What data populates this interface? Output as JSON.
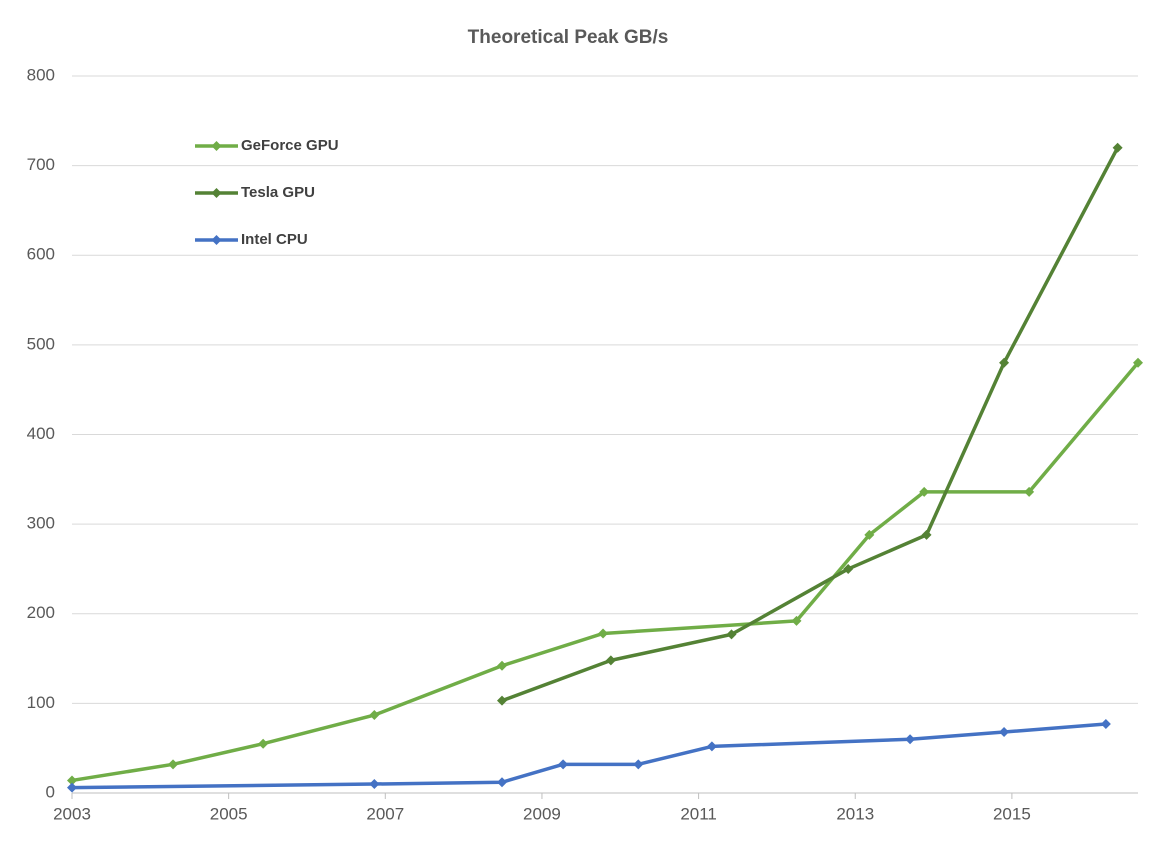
{
  "chart_data": {
    "type": "line",
    "title": "Theoretical  Peak GB/s",
    "xlim": [
      2003,
      2016.61
    ],
    "xticks": [
      2003,
      2005,
      2007,
      2009,
      2011,
      2013,
      2015
    ],
    "ylim": [
      0,
      800
    ],
    "yticks": [
      0,
      100,
      200,
      300,
      400,
      500,
      600,
      700,
      800
    ],
    "grid": true,
    "legend": "upper left",
    "series": [
      {
        "name": "GeForce GPU",
        "color": "#70ad47",
        "x": [
          2003.0,
          2004.29,
          2005.44,
          2006.86,
          2008.49,
          2009.78,
          2012.25,
          2013.18,
          2013.88,
          2015.22,
          2016.61
        ],
        "values": [
          14,
          32,
          55,
          87,
          142,
          178,
          192,
          288,
          336,
          336,
          480
        ]
      },
      {
        "name": "Tesla GPU",
        "color": "#548235",
        "x": [
          2008.49,
          2009.88,
          2011.42,
          2012.91,
          2013.91,
          2014.9,
          2016.35
        ],
        "values": [
          103,
          148,
          177,
          250,
          288,
          480,
          720
        ]
      },
      {
        "name": "Intel CPU",
        "color": "#4472c4",
        "x": [
          2003.0,
          2006.86,
          2008.49,
          2009.27,
          2010.23,
          2011.17,
          2013.7,
          2014.9,
          2016.2
        ],
        "values": [
          6,
          10,
          12,
          32,
          32,
          52,
          60,
          68,
          77
        ]
      }
    ]
  }
}
